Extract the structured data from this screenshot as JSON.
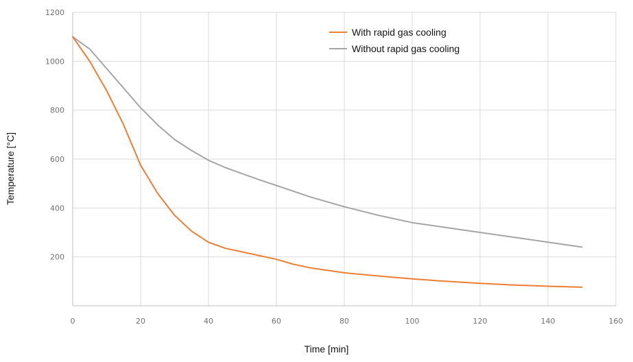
{
  "chart_data": {
    "type": "line",
    "xlabel": "Time [min]",
    "ylabel": "Temperature [°C]",
    "xlim": [
      0,
      160
    ],
    "ylim": [
      0,
      1200
    ],
    "xticks": [
      0,
      20,
      40,
      60,
      80,
      100,
      120,
      140,
      160
    ],
    "yticks": [
      200,
      400,
      600,
      800,
      1000,
      1200
    ],
    "grid": true,
    "legend_position": "top-right",
    "series": [
      {
        "name": "With rapid gas cooling",
        "color": "#ED7D31",
        "points": [
          [
            0,
            1100
          ],
          [
            5,
            1000
          ],
          [
            10,
            880
          ],
          [
            15,
            740
          ],
          [
            20,
            575
          ],
          [
            25,
            460
          ],
          [
            30,
            370
          ],
          [
            35,
            305
          ],
          [
            40,
            260
          ],
          [
            45,
            235
          ],
          [
            50,
            220
          ],
          [
            55,
            205
          ],
          [
            60,
            190
          ],
          [
            65,
            170
          ],
          [
            70,
            155
          ],
          [
            75,
            145
          ],
          [
            80,
            135
          ],
          [
            90,
            122
          ],
          [
            100,
            110
          ],
          [
            110,
            100
          ],
          [
            120,
            92
          ],
          [
            130,
            85
          ],
          [
            140,
            80
          ],
          [
            150,
            76
          ]
        ]
      },
      {
        "name": "Without rapid gas cooling",
        "color": "#A5A5A5",
        "points": [
          [
            0,
            1100
          ],
          [
            5,
            1050
          ],
          [
            10,
            970
          ],
          [
            15,
            890
          ],
          [
            20,
            810
          ],
          [
            25,
            740
          ],
          [
            30,
            680
          ],
          [
            35,
            635
          ],
          [
            40,
            595
          ],
          [
            45,
            565
          ],
          [
            50,
            540
          ],
          [
            55,
            515
          ],
          [
            60,
            492
          ],
          [
            70,
            445
          ],
          [
            80,
            405
          ],
          [
            90,
            370
          ],
          [
            100,
            340
          ],
          [
            110,
            320
          ],
          [
            120,
            300
          ],
          [
            130,
            280
          ],
          [
            140,
            260
          ],
          [
            150,
            240
          ]
        ]
      }
    ]
  }
}
